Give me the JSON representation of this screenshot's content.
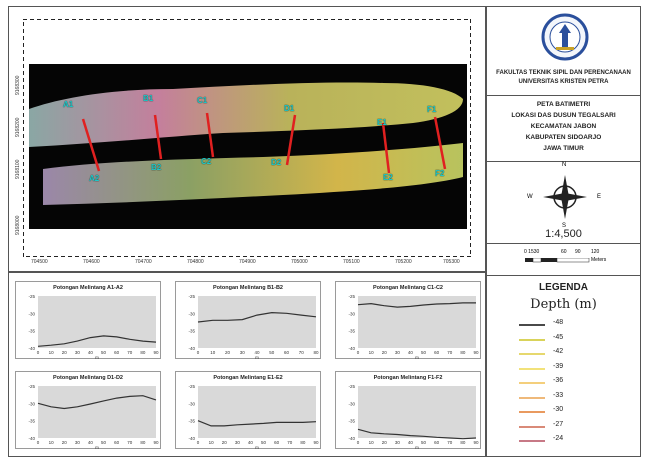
{
  "map": {
    "y_ticks": [
      "9168300",
      "9168200",
      "9168100",
      "9168000"
    ],
    "x_ticks": [
      "704500",
      "704600",
      "704700",
      "704800",
      "704900",
      "705000",
      "705100",
      "705200",
      "705300"
    ],
    "points_top": [
      "A1",
      "B1",
      "C1",
      "D1",
      "E1",
      "F1"
    ],
    "points_bottom": [
      "A2",
      "B2",
      "C2",
      "D2",
      "E2",
      "F2"
    ]
  },
  "profiles": [
    {
      "title": "Potongan Melintang A1-A2",
      "y_ticks": [
        "-25",
        "-30",
        "-35",
        "-40"
      ],
      "x_ticks": [
        "0",
        "10",
        "20",
        "30",
        "40",
        "50",
        "60",
        "70",
        "80",
        "90"
      ],
      "xlabel": "m",
      "depth": [
        -39.5,
        -39.2,
        -38.8,
        -38.0,
        -37.0,
        -36.5,
        -36.8,
        -37.5,
        -38.0,
        -38.3
      ]
    },
    {
      "title": "Potongan Melintang B1-B2",
      "y_ticks": [
        "-25",
        "-30",
        "-35",
        "-40"
      ],
      "x_ticks": [
        "0",
        "10",
        "20",
        "30",
        "40",
        "50",
        "60",
        "70",
        "80"
      ],
      "xlabel": "m",
      "depth": [
        -32.5,
        -32.0,
        -32.0,
        -31.8,
        -30.5,
        -29.8,
        -30.0,
        -30.5,
        -31.0
      ]
    },
    {
      "title": "Potongan Melintang C1-C2",
      "y_ticks": [
        "-25",
        "-30",
        "-35",
        "-40"
      ],
      "x_ticks": [
        "0",
        "10",
        "20",
        "30",
        "40",
        "50",
        "60",
        "70",
        "80",
        "90"
      ],
      "xlabel": "m",
      "depth": [
        -27.5,
        -27.2,
        -27.8,
        -28.2,
        -28.0,
        -27.6,
        -27.3,
        -27.2,
        -27.0,
        -27.0
      ]
    },
    {
      "title": "Potongan Melintang D1-D2",
      "y_ticks": [
        "-25",
        "-30",
        "-35",
        "-40"
      ],
      "x_ticks": [
        "0",
        "10",
        "20",
        "30",
        "40",
        "50",
        "60",
        "70",
        "80",
        "90"
      ],
      "xlabel": "m",
      "depth": [
        -30.0,
        -31.0,
        -31.5,
        -31.0,
        -30.2,
        -29.3,
        -28.5,
        -28.0,
        -27.8,
        -29.0
      ]
    },
    {
      "title": "Potongan Melintang E1-E2",
      "y_ticks": [
        "-25",
        "-30",
        "-35",
        "-40"
      ],
      "x_ticks": [
        "0",
        "10",
        "20",
        "30",
        "40",
        "50",
        "60",
        "70",
        "80",
        "90"
      ],
      "xlabel": "m",
      "depth": [
        -35.0,
        -36.5,
        -36.5,
        -36.2,
        -36.0,
        -35.8,
        -35.5,
        -35.5,
        -35.5,
        -35.3
      ]
    },
    {
      "title": "Potongan Melintang F1-F2",
      "y_ticks": [
        "-25",
        "-30",
        "-35",
        "-40"
      ],
      "x_ticks": [
        "0",
        "10",
        "20",
        "30",
        "40",
        "50",
        "60",
        "70",
        "80",
        "90"
      ],
      "xlabel": "m",
      "depth": [
        -37.5,
        -38.5,
        -38.8,
        -39.0,
        -39.3,
        -39.5,
        -39.8,
        -40.0,
        -40.2,
        -40.0
      ]
    }
  ],
  "sidebar": {
    "institution_line1": "FAKULTAS TEKNIK SIPIL DAN PERENCANAAN",
    "institution_line2": "UNIVERSITAS KRISTEN PETRA",
    "map_title": [
      "PETA BATIMETRI",
      "LOKASI DAS DUSUN TEGALSARI",
      "KECAMATAN JABON",
      "KABUPATEN SIDOARJO",
      "JAWA TIMUR"
    ],
    "compass": {
      "n": "N",
      "s": "S",
      "e": "E",
      "w": "W"
    },
    "scale_text": "1:4,500",
    "scalebar_ticks": [
      "0 1530",
      "60",
      "90",
      "120"
    ],
    "scalebar_unit": "Meters",
    "legend_title": "LEGENDA",
    "legend_subtitle": "Depth (m)",
    "legend_items": [
      {
        "value": "-48",
        "color": "#4a4a4a"
      },
      {
        "value": "-45",
        "color": "#d9d35a"
      },
      {
        "value": "-42",
        "color": "#e6d86e"
      },
      {
        "value": "-39",
        "color": "#f2e27a"
      },
      {
        "value": "-36",
        "color": "#f4cf7c"
      },
      {
        "value": "-33",
        "color": "#efb97a"
      },
      {
        "value": "-30",
        "color": "#e99a5f"
      },
      {
        "value": "-27",
        "color": "#d98a78"
      },
      {
        "value": "-24",
        "color": "#c77986"
      }
    ]
  }
}
